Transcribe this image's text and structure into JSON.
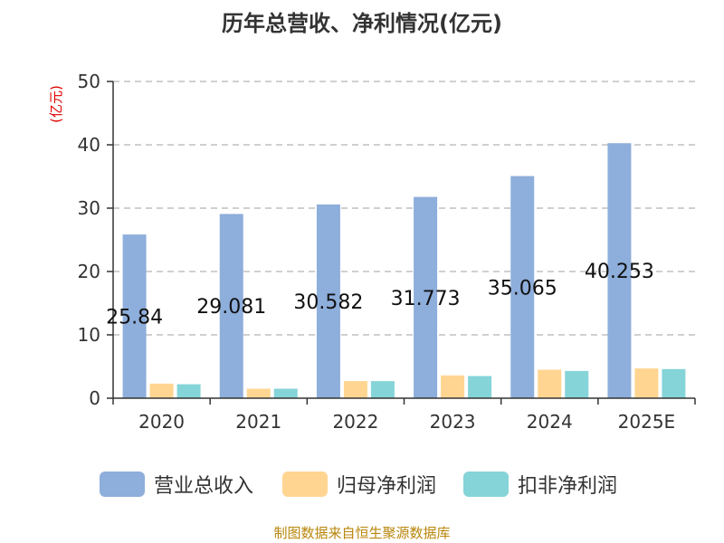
{
  "chart_data": {
    "type": "bar",
    "title": "历年总营收、净利情况(亿元)",
    "xlabel": "",
    "ylabel": "(亿元)",
    "ylim": [
      0,
      50
    ],
    "yticks": [
      0,
      10,
      20,
      30,
      40,
      50
    ],
    "categories": [
      "2020",
      "2021",
      "2022",
      "2023",
      "2024",
      "2025E"
    ],
    "series": [
      {
        "name": "营业总收入",
        "color": "#8eaedb",
        "values": [
          25.84,
          29.081,
          30.582,
          31.773,
          35.065,
          40.253
        ],
        "labels": [
          "25.84",
          "29.081",
          "30.582",
          "31.773",
          "35.065",
          "40.253"
        ]
      },
      {
        "name": "归母净利润",
        "color": "#ffd591",
        "values": [
          2.3,
          1.5,
          2.7,
          3.6,
          4.5,
          4.7
        ]
      },
      {
        "name": "扣非净利润",
        "color": "#85d4d8",
        "values": [
          2.2,
          1.5,
          2.7,
          3.5,
          4.3,
          4.6
        ]
      }
    ],
    "grid": true,
    "legend_position": "bottom"
  },
  "footer": {
    "source": "制图数据来自恒生聚源数据库"
  }
}
